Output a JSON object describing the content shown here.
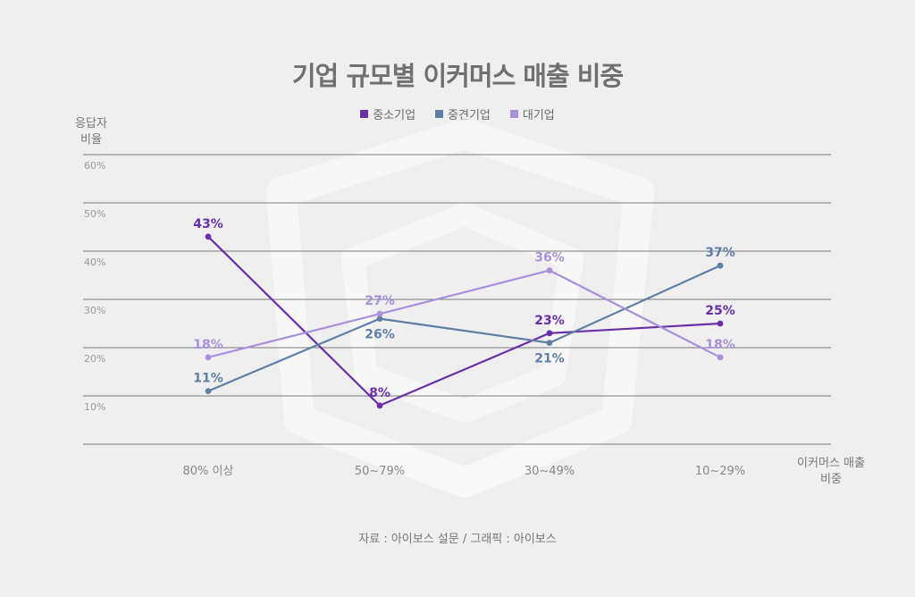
{
  "chart_data": {
    "type": "line",
    "title": "기업 규모별 이커머스 매출 비중",
    "ylabel": "응답자 비율",
    "xlabel": "이커머스 매출 비중",
    "categories": [
      "80% 이상",
      "50~79%",
      "30~49%",
      "10~29%"
    ],
    "y_ticks": [
      "10%",
      "20%",
      "30%",
      "40%",
      "50%",
      "60%"
    ],
    "ylim": [
      0,
      60
    ],
    "grid": true,
    "legend_position": "top-center",
    "series": [
      {
        "name": "중소기업",
        "color": "#6a2fa8",
        "values": [
          43,
          8,
          23,
          25
        ],
        "labels": [
          "43%",
          "8%",
          "23%",
          "25%"
        ]
      },
      {
        "name": "중견기업",
        "color": "#5e80a6",
        "values": [
          11,
          26,
          21,
          37
        ],
        "labels": [
          "11%",
          "26%",
          "21%",
          "37%"
        ]
      },
      {
        "name": "대기업",
        "color": "#a890db",
        "values": [
          18,
          27,
          36,
          18
        ],
        "labels": [
          "18%",
          "27%",
          "36%",
          "18%"
        ]
      }
    ],
    "source": "자료 : 아이보스 설문 / 그래픽 : 아이보스"
  }
}
